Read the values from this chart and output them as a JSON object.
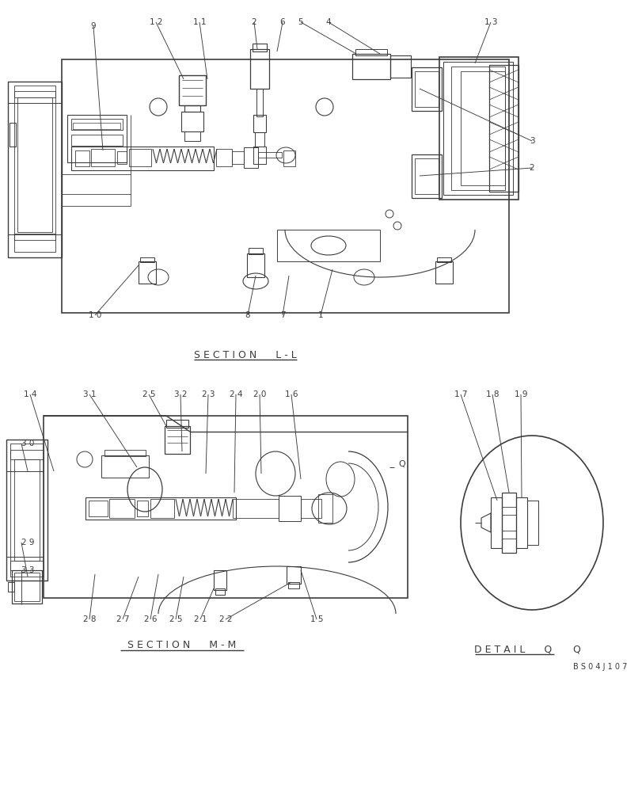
{
  "bg_color": "#ffffff",
  "lc": "#3c3c3c",
  "tc": "#3c3c3c",
  "fw": 8.12,
  "fh": 10.0,
  "dpi": 100,
  "sec_ll": "S E C T I O N      L - L",
  "sec_mm": "S E C T I O N      M - M",
  "det_q": "D E T A I L      Q",
  "code": "B S 0 4 J 1 0 7"
}
